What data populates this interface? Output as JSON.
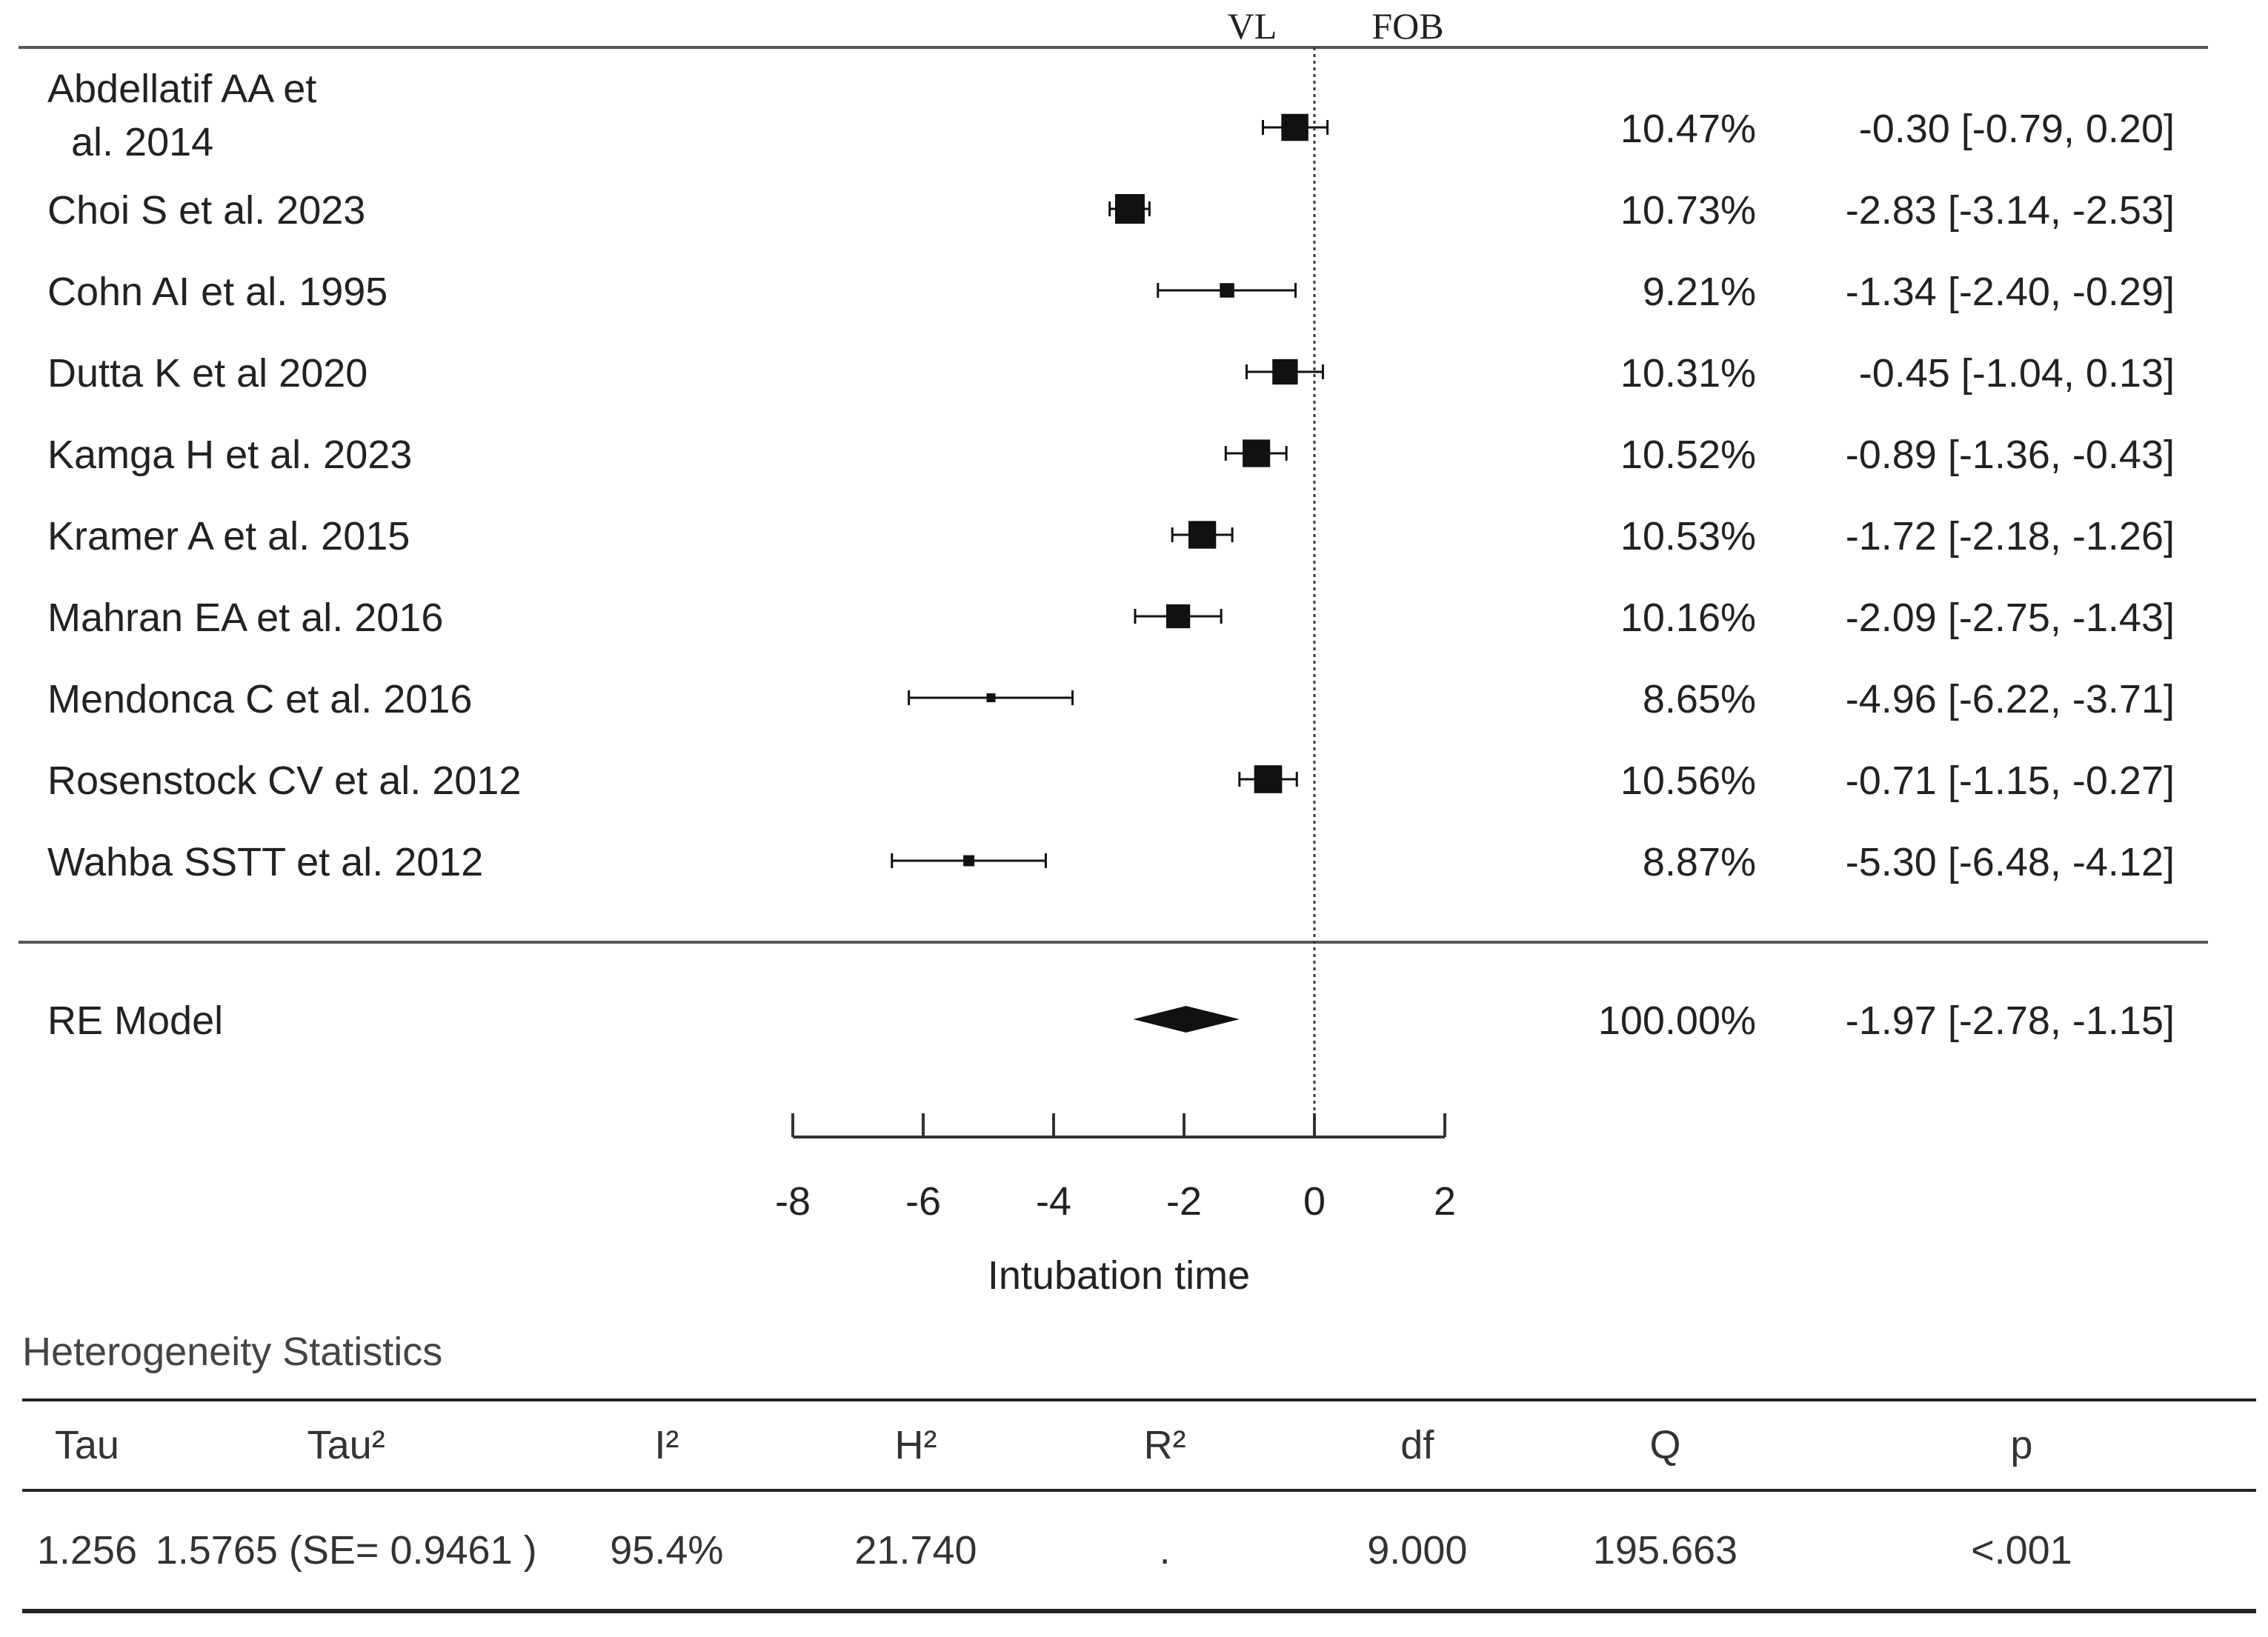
{
  "chart_data": {
    "type": "forest",
    "title": "",
    "xlabel": "Intubation time",
    "favours_left": "VL",
    "favours_right": "FOB",
    "xlim": [
      -8,
      2
    ],
    "xticks": [
      -8,
      -6,
      -4,
      -2,
      0,
      2
    ],
    "xtick_labels": [
      "-8",
      "-6",
      "-4",
      "-2",
      "0",
      "2"
    ],
    "reference_line": 0,
    "studies": [
      {
        "label_lines": [
          "Abdellatif AA et",
          "al. 2014"
        ],
        "estimate": -0.3,
        "lower": -0.79,
        "upper": 0.2,
        "weight_text": "10.47%",
        "ci_text": "-0.30 [-0.79,  0.20]"
      },
      {
        "label_lines": [
          "Choi S et al. 2023"
        ],
        "estimate": -2.83,
        "lower": -3.14,
        "upper": -2.53,
        "weight_text": "10.73%",
        "ci_text": "-2.83 [-3.14, -2.53]"
      },
      {
        "label_lines": [
          "Cohn AI et al. 1995"
        ],
        "estimate": -1.34,
        "lower": -2.4,
        "upper": -0.29,
        "weight_text": "9.21%",
        "ci_text": "-1.34 [-2.40, -0.29]"
      },
      {
        "label_lines": [
          "Dutta K et al 2020"
        ],
        "estimate": -0.45,
        "lower": -1.04,
        "upper": 0.13,
        "weight_text": "10.31%",
        "ci_text": "-0.45 [-1.04,  0.13]"
      },
      {
        "label_lines": [
          "Kamga H et al. 2023"
        ],
        "estimate": -0.89,
        "lower": -1.36,
        "upper": -0.43,
        "weight_text": "10.52%",
        "ci_text": "-0.89 [-1.36, -0.43]"
      },
      {
        "label_lines": [
          "Kramer A et al. 2015"
        ],
        "estimate": -1.72,
        "lower": -2.18,
        "upper": -1.26,
        "weight_text": "10.53%",
        "ci_text": "-1.72 [-2.18, -1.26]"
      },
      {
        "label_lines": [
          "Mahran EA et al. 2016"
        ],
        "estimate": -2.09,
        "lower": -2.75,
        "upper": -1.43,
        "weight_text": "10.16%",
        "ci_text": "-2.09 [-2.75, -1.43]"
      },
      {
        "label_lines": [
          "Mendonca C et al. 2016"
        ],
        "estimate": -4.96,
        "lower": -6.22,
        "upper": -3.71,
        "weight_text": "8.65%",
        "ci_text": "-4.96 [-6.22, -3.71]"
      },
      {
        "label_lines": [
          "Rosenstock CV et al. 2012"
        ],
        "estimate": -0.71,
        "lower": -1.15,
        "upper": -0.27,
        "weight_text": "10.56%",
        "ci_text": "-0.71 [-1.15, -0.27]"
      },
      {
        "label_lines": [
          "Wahba SSTT et al. 2012"
        ],
        "estimate": -5.3,
        "lower": -6.48,
        "upper": -4.12,
        "weight_text": "8.87%",
        "ci_text": "-5.30 [-6.48, -4.12]"
      }
    ],
    "summary": {
      "label": "RE Model",
      "estimate": -1.97,
      "lower": -2.78,
      "upper": -1.15,
      "weight_text": "100.00%",
      "ci_text": "-1.97 [-2.78, -1.15]"
    }
  },
  "heterogeneity": {
    "title": "Heterogeneity Statistics",
    "headers": [
      "Tau",
      "Tau²",
      "I²",
      "H²",
      "R²",
      "df",
      "Q",
      "p"
    ],
    "values": [
      "1.256",
      "1.5765 (SE= 0.9461 )",
      "95.4%",
      "21.740",
      ".",
      "9.000",
      "195.663",
      "<.001"
    ]
  },
  "colors": {
    "ink": "#111111",
    "text": "#222222",
    "rule": "#555555"
  }
}
